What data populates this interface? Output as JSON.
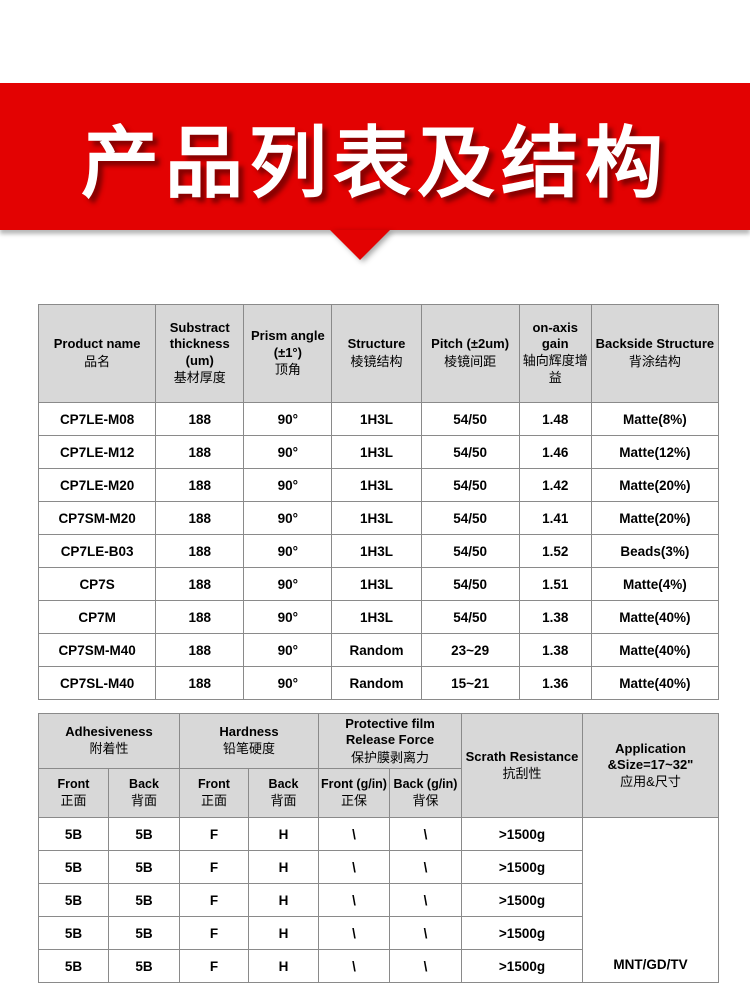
{
  "banner": {
    "title": "产品列表及结构",
    "bg_color": "#e30202"
  },
  "table1": {
    "headers": [
      {
        "en": "Product name",
        "zh": "品名"
      },
      {
        "en": "Substract thickness (um)",
        "zh": "基材厚度"
      },
      {
        "en": "Prism angle (±1°)",
        "zh": "顶角"
      },
      {
        "en": "Structure",
        "zh": "棱镜结构"
      },
      {
        "en": "Pitch (±2um)",
        "zh": "棱镜间距"
      },
      {
        "en": "on-axis gain",
        "zh": "轴向辉度增益"
      },
      {
        "en": "Backside Structure",
        "zh": "背涂结构"
      }
    ],
    "rows": [
      [
        "CP7LE-M08",
        "188",
        "90°",
        "1H3L",
        "54/50",
        "1.48",
        "Matte(8%)"
      ],
      [
        "CP7LE-M12",
        "188",
        "90°",
        "1H3L",
        "54/50",
        "1.46",
        "Matte(12%)"
      ],
      [
        "CP7LE-M20",
        "188",
        "90°",
        "1H3L",
        "54/50",
        "1.42",
        "Matte(20%)"
      ],
      [
        "CP7SM-M20",
        "188",
        "90°",
        "1H3L",
        "54/50",
        "1.41",
        "Matte(20%)"
      ],
      [
        "CP7LE-B03",
        "188",
        "90°",
        "1H3L",
        "54/50",
        "1.52",
        "Beads(3%)"
      ],
      [
        "CP7S",
        "188",
        "90°",
        "1H3L",
        "54/50",
        "1.51",
        "Matte(4%)"
      ],
      [
        "CP7M",
        "188",
        "90°",
        "1H3L",
        "54/50",
        "1.38",
        "Matte(40%)"
      ],
      [
        "CP7SM-M40",
        "188",
        "90°",
        "Random",
        "23~29",
        "1.38",
        "Matte(40%)"
      ],
      [
        "CP7SL-M40",
        "188",
        "90°",
        "Random",
        "15~21",
        "1.36",
        "Matte(40%)"
      ]
    ]
  },
  "table2": {
    "groups": [
      {
        "en": "Adhesiveness",
        "zh": "附着性"
      },
      {
        "en": "Hardness",
        "zh": "铅笔硬度"
      },
      {
        "en": "Protective film Release Force",
        "zh": "保护膜剥离力"
      },
      {
        "en": "Scrath Resistance",
        "zh": "抗刮性"
      },
      {
        "en": "Application &Size=17~32\"",
        "zh": "应用&尺寸"
      }
    ],
    "subheaders": [
      {
        "en": "Front",
        "zh": "正面"
      },
      {
        "en": "Back",
        "zh": "背面"
      },
      {
        "en": "Front",
        "zh": "正面"
      },
      {
        "en": "Back",
        "zh": "背面"
      },
      {
        "en": "Front (g/in)",
        "zh": "正保"
      },
      {
        "en": "Back (g/in)",
        "zh": "背保"
      }
    ],
    "rows": [
      [
        "5B",
        "5B",
        "F",
        "H",
        "\\",
        "\\",
        ">1500g"
      ],
      [
        "5B",
        "5B",
        "F",
        "H",
        "\\",
        "\\",
        ">1500g"
      ],
      [
        "5B",
        "5B",
        "F",
        "H",
        "\\",
        "\\",
        ">1500g"
      ],
      [
        "5B",
        "5B",
        "F",
        "H",
        "\\",
        "\\",
        ">1500g"
      ],
      [
        "5B",
        "5B",
        "F",
        "H",
        "\\",
        "\\",
        ">1500g"
      ]
    ],
    "application_value": "MNT/GD/TV"
  }
}
